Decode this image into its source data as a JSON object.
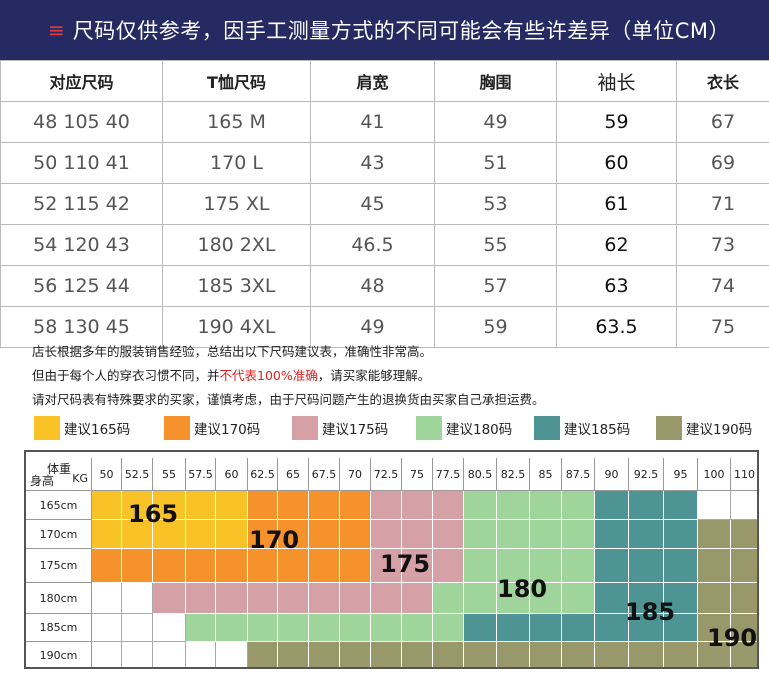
{
  "banner": {
    "text": "尺码仅供参考，因手工测量方式的不同可能会有些许差异（单位CM）"
  },
  "size_table": {
    "headers": [
      "对应尺码",
      "T恤尺码",
      "肩宽",
      "胸围",
      "袖长",
      "衣长"
    ],
    "rows": [
      [
        "48 105 40",
        "165 M",
        "41",
        "49",
        "59",
        "67"
      ],
      [
        "50 110 41",
        "170 L",
        "43",
        "51",
        "60",
        "69"
      ],
      [
        "52 115 42",
        "175 XL",
        "45",
        "53",
        "61",
        "71"
      ],
      [
        "54 120 43",
        "180 2XL",
        "46.5",
        "55",
        "62",
        "73"
      ],
      [
        "56 125 44",
        "185 3XL",
        "48",
        "57",
        "63",
        "74"
      ],
      [
        "58 130 45",
        "190 4XL",
        "49",
        "59",
        "63.5",
        "75"
      ]
    ]
  },
  "notes": {
    "line1": "店长根据多年的服装销售经验，总结出以下尺码建议表，准确性非常高。",
    "line2_a": "但由于每个人的穿衣习惯不同，并",
    "line2_red": "不代表100%准确",
    "line2_b": "，请买家能够理解。",
    "line3": "请对尺码表有特殊要求的买家，谨慎考虑，由于尺码问题产生的退换货由买家自己承担运费。"
  },
  "legend": [
    {
      "label": "建议165码",
      "color": "#f9c227"
    },
    {
      "label": "建议170码",
      "color": "#f6922c"
    },
    {
      "label": "建议175码",
      "color": "#d5a1a6"
    },
    {
      "label": "建议180码",
      "color": "#9fd59b"
    },
    {
      "label": "建议185码",
      "color": "#4e9495"
    },
    {
      "label": "建议190码",
      "color": "#98986a"
    }
  ],
  "chart": {
    "corner_weight": "体重",
    "corner_kg": "KG",
    "corner_height": "身高",
    "weights": [
      "50",
      "52.5",
      "55",
      "57.5",
      "60",
      "62.5",
      "65",
      "67.5",
      "70",
      "72.5",
      "75",
      "77.5",
      "80.5",
      "82.5",
      "85",
      "87.5",
      "90",
      "92.5",
      "95",
      "100",
      "110"
    ],
    "heights": [
      "165cm",
      "170cm",
      "175cm",
      "180cm",
      "185cm",
      "190cm"
    ],
    "grid": [
      [
        0,
        0,
        0,
        0,
        0,
        1,
        1,
        1,
        1,
        2,
        2,
        2,
        3,
        3,
        3,
        3,
        4,
        4,
        4,
        -1,
        -1
      ],
      [
        0,
        0,
        0,
        0,
        0,
        1,
        1,
        1,
        1,
        2,
        2,
        2,
        3,
        3,
        3,
        3,
        4,
        4,
        4,
        5,
        5
      ],
      [
        1,
        1,
        1,
        1,
        1,
        1,
        1,
        1,
        1,
        2,
        2,
        2,
        3,
        3,
        3,
        3,
        4,
        4,
        4,
        5,
        5
      ],
      [
        -1,
        -1,
        2,
        2,
        2,
        2,
        2,
        2,
        2,
        2,
        2,
        3,
        3,
        3,
        3,
        3,
        4,
        4,
        4,
        5,
        5
      ],
      [
        -1,
        -1,
        -1,
        3,
        3,
        3,
        3,
        3,
        3,
        3,
        3,
        3,
        4,
        4,
        4,
        4,
        4,
        4,
        4,
        5,
        5
      ],
      [
        -1,
        -1,
        -1,
        -1,
        -1,
        5,
        5,
        5,
        5,
        5,
        5,
        5,
        5,
        5,
        5,
        5,
        5,
        5,
        5,
        5,
        5
      ]
    ],
    "labels": [
      "165",
      "170",
      "175",
      "180",
      "185",
      "190"
    ]
  }
}
